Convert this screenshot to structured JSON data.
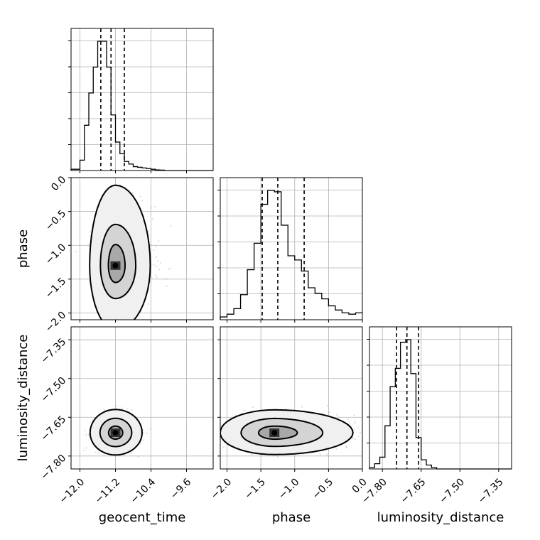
{
  "chart_data": {
    "type": "corner",
    "parameters": [
      "geocent_time",
      "phase",
      "luminosity_distance"
    ],
    "ranges": {
      "geocent_time": [
        -12.2,
        -9.0
      ],
      "phase": [
        -2.1,
        0.0
      ],
      "luminosity_distance": [
        -7.85,
        -7.3
      ]
    },
    "ticks": {
      "geocent_time": [
        -12.0,
        -11.2,
        -10.4,
        -9.6
      ],
      "phase": [
        -2.0,
        -1.5,
        -1.0,
        -0.5,
        0.0
      ],
      "luminosity_distance": [
        -7.8,
        -7.65,
        -7.5,
        -7.35
      ]
    },
    "tick_labels": {
      "geocent_time": [
        "−12.0",
        "−11.2",
        "−10.4",
        "−9.6"
      ],
      "phase": [
        "−2.0",
        "−1.5",
        "−1.0",
        "−0.5",
        "0.0"
      ],
      "luminosity_distance": [
        "−7.80",
        "−7.65",
        "−7.50",
        "−7.35"
      ]
    },
    "quantiles": {
      "geocent_time": [
        -11.53,
        -11.3,
        -11.0
      ],
      "phase": [
        -1.48,
        -1.25,
        -0.86
      ],
      "luminosity_distance": [
        -7.745,
        -7.705,
        -7.66
      ]
    },
    "histograms": {
      "geocent_time": {
        "edges": [
          -12.2,
          -12.0,
          -11.9,
          -11.8,
          -11.7,
          -11.6,
          -11.5,
          -11.4,
          -11.3,
          -11.2,
          -11.1,
          -11.0,
          -10.9,
          -10.8,
          -10.7,
          -10.6,
          -10.5,
          -10.4,
          -10.3,
          -10.2,
          -10.1,
          -10.0,
          -9.9,
          -9.8,
          -9.0
        ],
        "counts": [
          0.01,
          0.08,
          0.35,
          0.6,
          0.8,
          1.0,
          1.0,
          0.8,
          0.43,
          0.22,
          0.13,
          0.07,
          0.05,
          0.03,
          0.025,
          0.02,
          0.015,
          0.01,
          0.005,
          0.003,
          0.0,
          0.0,
          0.0,
          0.0
        ]
      },
      "phase": {
        "edges": [
          -2.1,
          -2.0,
          -1.9,
          -1.8,
          -1.7,
          -1.6,
          -1.5,
          -1.4,
          -1.3,
          -1.2,
          -1.1,
          -1.0,
          -0.9,
          -0.8,
          -0.7,
          -0.6,
          -0.5,
          -0.4,
          -0.3,
          -0.2,
          -0.1,
          0.0
        ],
        "counts": [
          0.02,
          0.04,
          0.08,
          0.18,
          0.36,
          0.55,
          0.83,
          0.93,
          0.92,
          0.68,
          0.46,
          0.43,
          0.35,
          0.23,
          0.19,
          0.15,
          0.1,
          0.07,
          0.05,
          0.04,
          0.05
        ]
      },
      "luminosity_distance": {
        "edges": [
          -7.85,
          -7.83,
          -7.81,
          -7.79,
          -7.77,
          -7.75,
          -7.73,
          -7.71,
          -7.69,
          -7.67,
          -7.65,
          -7.63,
          -7.61,
          -7.59,
          -7.3
        ],
        "counts": [
          0.01,
          0.04,
          0.09,
          0.33,
          0.63,
          0.77,
          0.97,
          0.99,
          0.73,
          0.24,
          0.07,
          0.03,
          0.01,
          0.0
        ]
      }
    },
    "joint": [
      {
        "x": "geocent_time",
        "y": "phase",
        "center": [
          -11.2,
          -1.3
        ],
        "spread": [
          0.22,
          0.27
        ],
        "levels": [
          [
            0.33,
            0.42
          ],
          [
            0.7,
            0.82
          ],
          [
            1.2,
            1.6
          ]
        ],
        "skew": [
          0.35,
          0.25
        ]
      },
      {
        "x": "geocent_time",
        "y": "luminosity_distance",
        "center": [
          -11.2,
          -7.71
        ],
        "spread": [
          0.22,
          0.032
        ],
        "levels": [
          [
            0.32,
            0.35
          ],
          [
            0.72,
            0.76
          ],
          [
            1.18,
            1.22
          ]
        ],
        "skew": [
          0.05,
          0.05
        ]
      },
      {
        "x": "phase",
        "y": "luminosity_distance",
        "center": [
          -1.3,
          -7.71
        ],
        "spread": [
          0.28,
          0.032
        ],
        "levels": [
          [
            0.38,
            0.35
          ],
          [
            0.8,
            0.75
          ],
          [
            1.3,
            1.2
          ]
        ],
        "skew": [
          0.45,
          0.05
        ]
      }
    ]
  }
}
